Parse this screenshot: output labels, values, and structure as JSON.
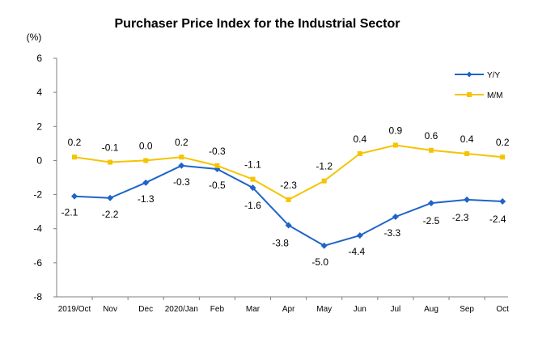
{
  "chart_data": {
    "type": "line",
    "title": "Purchaser Price Index for the Industrial  Sector",
    "unit_label": "(%)",
    "categories": [
      "2019/Oct",
      "Nov",
      "Dec",
      "2020/Jan",
      "Feb",
      "Mar",
      "Apr",
      "May",
      "Jun",
      "Jul",
      "Aug",
      "Sep",
      "Oct"
    ],
    "ylim": [
      -8,
      6
    ],
    "yticks": [
      6,
      4,
      2,
      0,
      -2,
      -4,
      -6,
      -8
    ],
    "grid": false,
    "legend_position": "top-right",
    "series": [
      {
        "name": "Y/Y",
        "color": "#1f64c8",
        "marker": "diamond",
        "values": [
          -2.1,
          -2.2,
          -1.3,
          -0.3,
          -0.5,
          -1.6,
          -3.8,
          -5.0,
          -4.4,
          -3.3,
          -2.5,
          -2.3,
          -2.4
        ],
        "labels": [
          "-2.1",
          "-2.2",
          "-1.3",
          "-0.3",
          "-0.5",
          "-1.6",
          "-3.8",
          "-5.0",
          "-4.4",
          "-3.3",
          "-2.5",
          "-2.3",
          "-2.4"
        ]
      },
      {
        "name": "M/M",
        "color": "#f5c400",
        "marker": "square",
        "values": [
          0.2,
          -0.1,
          0.0,
          0.2,
          -0.3,
          -1.1,
          -2.3,
          -1.2,
          0.4,
          0.9,
          0.6,
          0.4,
          0.2
        ],
        "labels": [
          "0.2",
          "-0.1",
          "0.0",
          "0.2",
          "-0.3",
          "-1.1",
          "-2.3",
          "-1.2",
          "0.4",
          "0.9",
          "0.6",
          "0.4",
          "0.2"
        ]
      }
    ]
  }
}
